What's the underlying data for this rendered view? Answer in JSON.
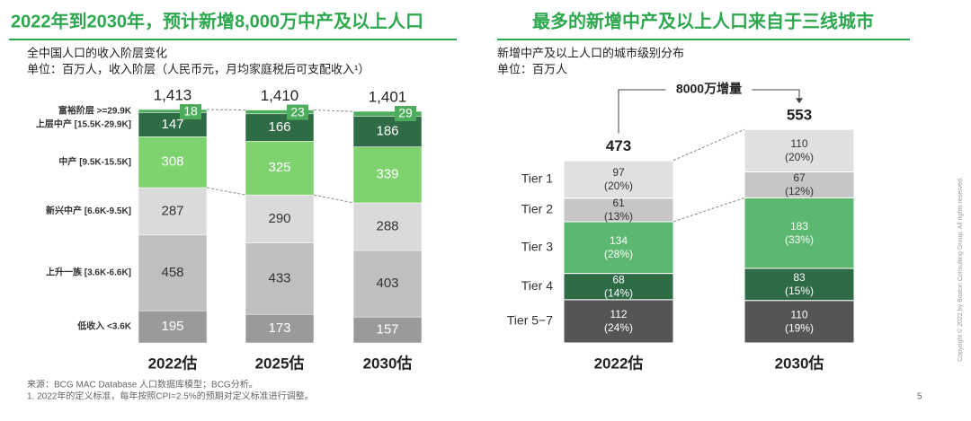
{
  "chart_data": [
    {
      "type": "stacked_bar",
      "title": "2022年到2030年，预计新增8,000万中产及以上人口",
      "subtitle": "全中国人口的收入阶层变化",
      "unit_note": "单位：百万人，收入阶层（人民币元，月均家庭税后可支配收入¹）",
      "categories": [
        "2022估",
        "2025估",
        "2030估"
      ],
      "totals": [
        1413,
        1410,
        1401
      ],
      "total_labels": [
        "1,413",
        "1,410",
        "1,401"
      ],
      "series": [
        {
          "name": "低收入 <3.6K",
          "color": "#9a9a9a",
          "label_color": "#ffffff",
          "values": [
            195,
            173,
            157
          ]
        },
        {
          "name": "上升一族 [3.6K-6.6K]",
          "color": "#bfbfbf",
          "label_color": "#333333",
          "values": [
            458,
            433,
            403
          ]
        },
        {
          "name": "新兴中产 [6.6K-9.5K]",
          "color": "#dadada",
          "label_color": "#333333",
          "values": [
            287,
            290,
            288
          ]
        },
        {
          "name": "中产 [9.5K-15.5K]",
          "color": "#7fd36f",
          "label_color": "#ffffff",
          "values": [
            308,
            325,
            339
          ]
        },
        {
          "name": "上层中产 [15.5K-29.9K]",
          "color": "#2f6b45",
          "label_color": "#ffffff",
          "values": [
            147,
            166,
            186
          ]
        },
        {
          "name": "富裕阶层 >=29.9K",
          "color": "#4cae5c",
          "label_color": "#ffffff",
          "label_style": "box",
          "values": [
            18,
            23,
            29
          ]
        }
      ]
    },
    {
      "type": "stacked_bar_share",
      "title": "最多的新增中产及以上人口来自于三线城市",
      "subtitle": "新增中产及以上人口的城市级别分布",
      "unit_note": "单位：百万人",
      "annotation": "8000万增量",
      "categories": [
        "2022估",
        "2030估"
      ],
      "totals": [
        473,
        553
      ],
      "series": [
        {
          "name": "Tier 5−7",
          "color": "#555555",
          "label_color": "#ffffff",
          "values": [
            112,
            110
          ],
          "shares": [
            24,
            19
          ],
          "share_labels": [
            "(24%)",
            "(19%)"
          ]
        },
        {
          "name": "Tier 4",
          "color": "#2f6b45",
          "label_color": "#ffffff",
          "values": [
            68,
            83
          ],
          "shares": [
            14,
            15
          ],
          "share_labels": [
            "(14%)",
            "(15%)"
          ]
        },
        {
          "name": "Tier 3",
          "color": "#5cb870",
          "label_color": "#ffffff",
          "values": [
            134,
            183
          ],
          "shares": [
            28,
            33
          ],
          "share_labels": [
            "(28%)",
            "(33%)"
          ]
        },
        {
          "name": "Tier 2",
          "color": "#c6c6c6",
          "label_color": "#333333",
          "values": [
            61,
            67
          ],
          "shares": [
            13,
            12
          ],
          "share_labels": [
            "(13%)",
            "(12%)"
          ]
        },
        {
          "name": "Tier 1",
          "color": "#e0e0e0",
          "label_color": "#333333",
          "values": [
            97,
            110
          ],
          "shares": [
            20,
            20
          ],
          "share_labels": [
            "(20%)",
            "(20%)"
          ]
        }
      ]
    }
  ],
  "footer": {
    "source": "来源：BCG MAC Database 人口数据库模型；BCG分析。",
    "note": "1. 2022年的定义标准，每年按照CPI=2.5%的预期对定义标准进行调整。",
    "page": 5,
    "copyright": "Copyright © 2022 by Boston Consulting Group. All rights reserved."
  }
}
